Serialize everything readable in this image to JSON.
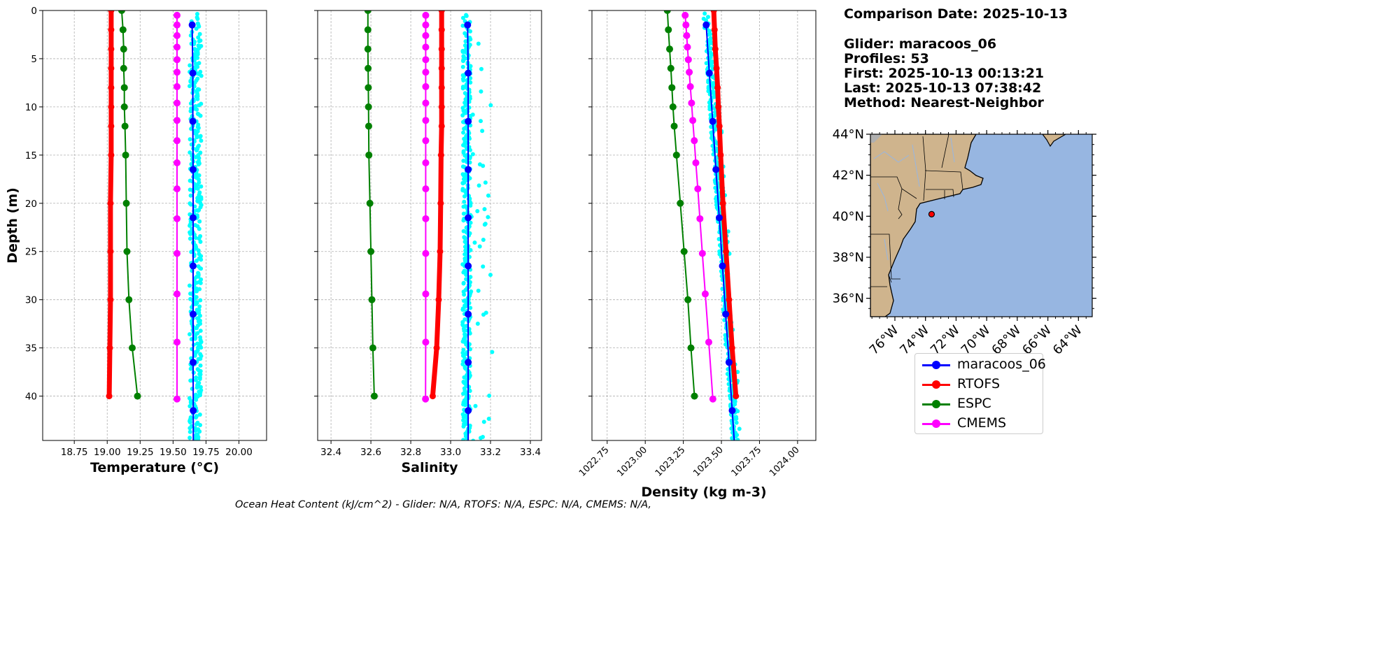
{
  "info": {
    "comparison_date": "Comparison Date: 2025-10-13",
    "glider": "Glider: maracoos_06",
    "profiles": "Profiles: 53",
    "first": "First: 2025-10-13 00:13:21",
    "last": "Last: 2025-10-13 07:38:42",
    "method": "Method: Nearest-Neighbor"
  },
  "footer": "Ocean Heat Content (kJ/cm^2) - Glider: N/A,  RTOFS: N/A,  ESPC: N/A,  CMEMS: N/A,",
  "legend": [
    {
      "label": "maracoos_06",
      "color": "#0000ff"
    },
    {
      "label": "RTOFS",
      "color": "#ff0000"
    },
    {
      "label": "ESPC",
      "color": "#008000"
    },
    {
      "label": "CMEMS",
      "color": "#ff00ff"
    }
  ],
  "chart_data": [
    {
      "type": "line",
      "xlabel": "Temperature (°C)",
      "ylabel": "Depth (m)",
      "xlim": [
        18.51,
        20.21
      ],
      "ylim": [
        44.6,
        0
      ],
      "xticks": [
        "18.75",
        "19.00",
        "19.25",
        "19.50",
        "19.75",
        "20.00"
      ],
      "yticks": [
        "0",
        "5",
        "10",
        "15",
        "20",
        "25",
        "30",
        "35",
        "40"
      ],
      "grid": true,
      "raw_scatter": {
        "name": "maracoos_06 raw",
        "color": "#00ffff",
        "center": 19.67,
        "spread": 0.045,
        "outlier_spread": 0.0
      },
      "series": [
        {
          "name": "RTOFS",
          "color": "#ff0000",
          "depth": [
            0,
            2,
            4,
            6,
            8,
            10,
            12,
            15,
            20,
            25,
            30,
            35,
            40
          ],
          "values": [
            19.03,
            19.03,
            19.03,
            19.03,
            19.03,
            19.03,
            19.03,
            19.03,
            19.025,
            19.025,
            19.025,
            19.02,
            19.015
          ]
        },
        {
          "name": "ESPC",
          "color": "#008000",
          "depth": [
            0,
            2,
            4,
            6,
            8,
            10,
            12,
            15,
            20,
            25,
            30,
            35,
            40
          ],
          "values": [
            19.11,
            19.12,
            19.125,
            19.125,
            19.13,
            19.13,
            19.135,
            19.14,
            19.145,
            19.15,
            19.165,
            19.19,
            19.23
          ]
        },
        {
          "name": "CMEMS",
          "color": "#ff00ff",
          "depth": [
            0.5,
            1.5,
            2.6,
            3.8,
            5.1,
            6.4,
            7.9,
            9.6,
            11.4,
            13.5,
            15.8,
            18.5,
            21.6,
            25.2,
            29.4,
            34.4,
            40.3
          ],
          "values": [
            19.53,
            19.53,
            19.53,
            19.53,
            19.53,
            19.53,
            19.53,
            19.53,
            19.53,
            19.53,
            19.53,
            19.53,
            19.53,
            19.53,
            19.53,
            19.53,
            19.53
          ]
        },
        {
          "name": "maracoos_06",
          "color": "#0000ff",
          "depth": [
            1.5,
            6.5,
            11.5,
            16.5,
            21.5,
            26.5,
            31.5,
            36.5,
            41.5
          ],
          "values": [
            19.645,
            19.65,
            19.65,
            19.652,
            19.652,
            19.652,
            19.652,
            19.652,
            19.653
          ]
        }
      ]
    },
    {
      "type": "line",
      "xlabel": "Salinity",
      "xlim": [
        32.333,
        33.456
      ],
      "ylim": [
        44.6,
        0
      ],
      "xticks": [
        "32.4",
        "32.6",
        "32.8",
        "33.0",
        "33.2",
        "33.4"
      ],
      "grid": true,
      "raw_scatter": {
        "name": "maracoos_06 raw",
        "color": "#00ffff",
        "center": 33.08,
        "spread": 0.02,
        "outlier_spread": 0.13
      },
      "series": [
        {
          "name": "RTOFS",
          "color": "#ff0000",
          "depth": [
            0,
            2,
            4,
            6,
            8,
            10,
            12,
            15,
            20,
            25,
            30,
            35,
            40
          ],
          "values": [
            32.955,
            32.955,
            32.955,
            32.955,
            32.955,
            32.955,
            32.955,
            32.952,
            32.95,
            32.947,
            32.94,
            32.93,
            32.91
          ]
        },
        {
          "name": "ESPC",
          "color": "#008000",
          "depth": [
            0,
            2,
            4,
            6,
            8,
            10,
            12,
            15,
            20,
            25,
            30,
            35,
            40
          ],
          "values": [
            32.585,
            32.585,
            32.585,
            32.586,
            32.587,
            32.588,
            32.589,
            32.59,
            32.595,
            32.6,
            32.605,
            32.61,
            32.617
          ]
        },
        {
          "name": "CMEMS",
          "color": "#ff00ff",
          "depth": [
            0.5,
            1.5,
            2.6,
            3.8,
            5.1,
            6.4,
            7.9,
            9.6,
            11.4,
            13.5,
            15.8,
            18.5,
            21.6,
            25.2,
            29.4,
            34.4,
            40.3
          ],
          "values": [
            32.875,
            32.875,
            32.875,
            32.875,
            32.875,
            32.875,
            32.875,
            32.875,
            32.875,
            32.875,
            32.875,
            32.875,
            32.875,
            32.875,
            32.875,
            32.875,
            32.874
          ]
        },
        {
          "name": "maracoos_06",
          "color": "#0000ff",
          "depth": [
            1.5,
            6.5,
            11.5,
            16.5,
            21.5,
            26.5,
            31.5,
            36.5,
            41.5
          ],
          "values": [
            33.085,
            33.088,
            33.088,
            33.088,
            33.088,
            33.088,
            33.088,
            33.088,
            33.088
          ]
        }
      ]
    },
    {
      "type": "line",
      "xlabel": "Density (kg m-3)",
      "xlim": [
        1022.65,
        1024.12
      ],
      "ylim": [
        44.6,
        0
      ],
      "xticks": [
        "1022.75",
        "1023.00",
        "1023.25",
        "1023.50",
        "1023.75",
        "1024.00"
      ],
      "grid": true,
      "raw_scatter": {
        "name": "maracoos_06 raw",
        "color": "#00ffff",
        "center": 0.0,
        "spread": 0.02,
        "outlier_spread": 0.05
      },
      "series": [
        {
          "name": "RTOFS",
          "color": "#ff0000",
          "depth": [
            0,
            2,
            4,
            6,
            8,
            10,
            12,
            15,
            20,
            25,
            30,
            35,
            40
          ],
          "values": [
            1023.45,
            1023.455,
            1023.46,
            1023.468,
            1023.475,
            1023.48,
            1023.487,
            1023.495,
            1023.51,
            1023.53,
            1023.55,
            1023.57,
            1023.595
          ]
        },
        {
          "name": "ESPC",
          "color": "#008000",
          "depth": [
            0,
            2,
            4,
            6,
            8,
            10,
            12,
            15,
            20,
            25,
            30,
            35,
            40
          ],
          "values": [
            1023.145,
            1023.152,
            1023.16,
            1023.168,
            1023.175,
            1023.182,
            1023.19,
            1023.205,
            1023.23,
            1023.255,
            1023.28,
            1023.3,
            1023.323
          ]
        },
        {
          "name": "CMEMS",
          "color": "#ff00ff",
          "depth": [
            0.5,
            1.5,
            2.6,
            3.8,
            5.1,
            6.4,
            7.9,
            9.6,
            11.4,
            13.5,
            15.8,
            18.5,
            21.6,
            25.2,
            29.4,
            34.4,
            40.3
          ],
          "values": [
            1023.262,
            1023.267,
            1023.272,
            1023.277,
            1023.283,
            1023.289,
            1023.296,
            1023.304,
            1023.312,
            1023.322,
            1023.332,
            1023.345,
            1023.359,
            1023.375,
            1023.394,
            1023.417,
            1023.444
          ]
        },
        {
          "name": "maracoos_06",
          "color": "#0000ff",
          "depth": [
            1.5,
            6.5,
            11.5,
            16.5,
            21.5,
            26.5,
            31.5,
            36.5,
            41.5
          ],
          "values": [
            1023.4,
            1023.421,
            1023.443,
            1023.464,
            1023.486,
            1023.507,
            1023.528,
            1023.55,
            1023.571
          ]
        }
      ]
    }
  ],
  "map": {
    "lat_ticks": [
      "44°N",
      "42°N",
      "40°N",
      "38°N",
      "36°N"
    ],
    "lon_ticks": [
      "76°W",
      "74°W",
      "72°W",
      "70°W",
      "68°W",
      "66°W",
      "64°W"
    ],
    "lon_range": [
      -77.6,
      -63.1
    ],
    "lat_range": [
      35.1,
      44.0
    ],
    "glider_location": {
      "lon": -73.6,
      "lat": 40.1
    },
    "colors": {
      "ocean": "#97b6e1",
      "land": "#cfb48d",
      "marker": "#ff0000"
    }
  }
}
